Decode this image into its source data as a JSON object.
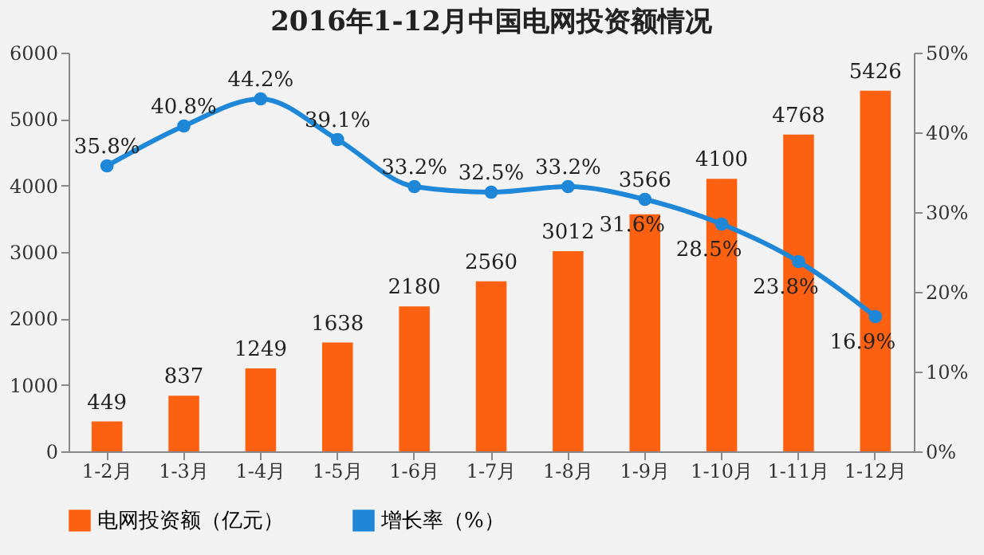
{
  "chart_data": {
    "type": "bar",
    "title": "2016年1-12月中国电网投资额情况",
    "categories": [
      "1-2月",
      "1-3月",
      "1-4月",
      "1-5月",
      "1-6月",
      "1-7月",
      "1-8月",
      "1-9月",
      "1-10月",
      "1-11月",
      "1-12月"
    ],
    "series": [
      {
        "name": "电网投资额（亿元）",
        "color": "#fc6011",
        "values": [
          449,
          837,
          1249,
          1638,
          2180,
          2560,
          3012,
          3566,
          4100,
          4768,
          5426
        ]
      },
      {
        "name": "增长率（%）",
        "type": "line",
        "axis": "y2",
        "color": "#1f87d8",
        "values": [
          35.8,
          40.8,
          44.2,
          39.1,
          33.2,
          32.5,
          33.2,
          31.6,
          28.5,
          23.8,
          16.9
        ],
        "value_labels": [
          "35.8%",
          "40.8%",
          "44.2%",
          "39.1%",
          "33.2%",
          "32.5%",
          "33.2%",
          "31.6%",
          "28.5%",
          "23.8%",
          "16.9%"
        ]
      }
    ],
    "ylim": [
      0,
      6000
    ],
    "yticks": [
      0,
      1000,
      2000,
      3000,
      4000,
      5000,
      6000
    ],
    "y2lim": [
      0,
      50
    ],
    "y2ticks": [
      {
        "value": 0,
        "label": "0%"
      },
      {
        "value": 10,
        "label": "10%"
      },
      {
        "value": 20,
        "label": "20%"
      },
      {
        "value": 30,
        "label": "30%"
      },
      {
        "value": 40,
        "label": "40%"
      },
      {
        "value": 50,
        "label": "50%"
      }
    ],
    "data_labels": true,
    "legend": "bottom",
    "marker": "circle",
    "line_style": "solid",
    "grid": false
  }
}
